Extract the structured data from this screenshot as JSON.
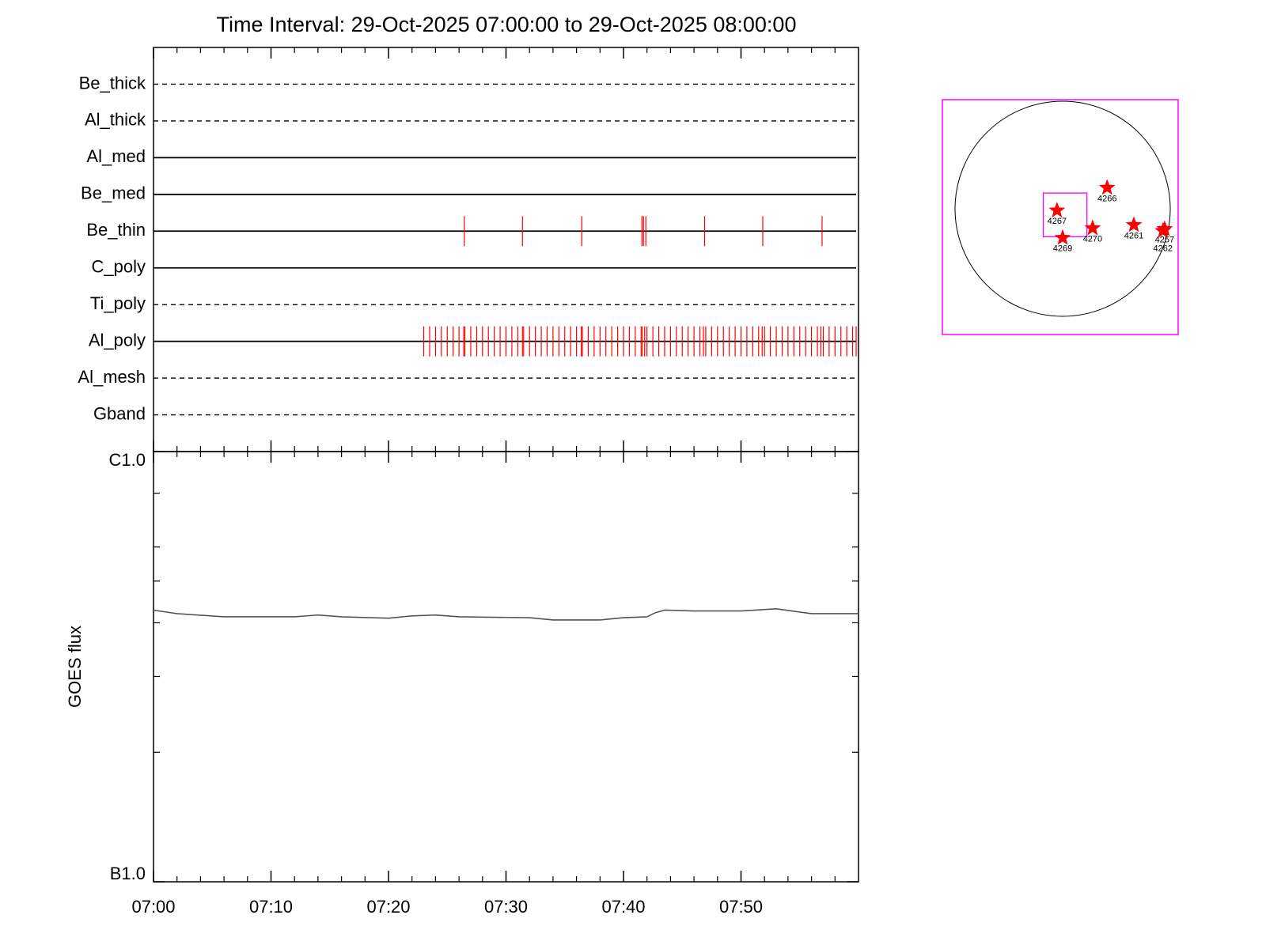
{
  "chart_data": [
    {
      "type": "timeline",
      "title": "Time Interval: 29-Oct-2025 07:00:00 to 29-Oct-2025 08:00:00",
      "xlim": [
        0,
        60
      ],
      "xticks": [
        0,
        10,
        20,
        30,
        40,
        50
      ],
      "xminor": [
        2,
        4,
        6,
        8,
        12,
        14,
        16,
        18,
        22,
        24,
        26,
        28,
        32,
        34,
        36,
        38,
        42,
        44,
        46,
        48,
        52,
        54,
        56,
        58
      ],
      "color": "#ff0000",
      "rows": [
        {
          "name": "Be_thick",
          "style": "dashed",
          "x": []
        },
        {
          "name": "Al_thick",
          "style": "dashed",
          "x": []
        },
        {
          "name": "Al_med",
          "style": "solid",
          "x": []
        },
        {
          "name": "Be_med",
          "style": "solid",
          "x": []
        },
        {
          "name": "Be_thin",
          "style": "solid",
          "x": [
            26.45,
            31.4,
            36.45,
            41.57,
            41.7,
            41.9,
            46.9,
            51.85,
            56.9
          ]
        },
        {
          "name": "C_poly",
          "style": "solid",
          "x": []
        },
        {
          "name": "Ti_poly",
          "style": "dashed",
          "x": []
        },
        {
          "name": "Al_poly",
          "style": "solid",
          "x": [
            23.0,
            23.5,
            24.0,
            24.5,
            25.0,
            25.5,
            26.0,
            26.4,
            26.5,
            27.0,
            27.5,
            28.0,
            28.5,
            29.0,
            29.5,
            30.0,
            30.5,
            31.0,
            31.4,
            31.5,
            32.0,
            32.5,
            33.0,
            33.5,
            34.0,
            34.5,
            35.0,
            35.5,
            36.0,
            36.4,
            36.5,
            37.0,
            37.5,
            38.0,
            38.5,
            39.0,
            39.5,
            40.0,
            40.5,
            41.0,
            41.5,
            41.6,
            41.8,
            42.0,
            42.5,
            43.0,
            43.5,
            44.0,
            44.5,
            45.0,
            45.5,
            46.0,
            46.5,
            46.8,
            47.0,
            47.5,
            48.0,
            48.5,
            49.0,
            49.5,
            50.0,
            50.5,
            51.0,
            51.5,
            51.8,
            52.0,
            52.5,
            53.0,
            53.5,
            54.0,
            54.5,
            55.0,
            55.5,
            56.0,
            56.5,
            56.8,
            57.0,
            57.5,
            58.0,
            58.5,
            59.0,
            59.5,
            59.8
          ]
        },
        {
          "name": "Al_mesh",
          "style": "dashed",
          "x": []
        },
        {
          "name": "Gband",
          "style": "dashed",
          "x": []
        }
      ]
    },
    {
      "type": "line",
      "ylabel": "GOES flux",
      "ylog": true,
      "color": "#555555",
      "xlim": [
        0,
        60
      ],
      "xticks": [
        {
          "value": 0,
          "label": "07:00"
        },
        {
          "value": 10,
          "label": "07:10"
        },
        {
          "value": 20,
          "label": "07:20"
        },
        {
          "value": 30,
          "label": "07:30"
        },
        {
          "value": 40,
          "label": "07:40"
        },
        {
          "value": 50,
          "label": "07:50"
        }
      ],
      "xminor": [
        2,
        4,
        6,
        8,
        12,
        14,
        16,
        18,
        22,
        24,
        26,
        28,
        32,
        34,
        36,
        38,
        42,
        44,
        46,
        48,
        52,
        54,
        56,
        58
      ],
      "ylim": [
        1e-07,
        1e-06
      ],
      "yticks": [
        {
          "value": 1e-06,
          "label": "C1.0"
        },
        {
          "value": 1e-07,
          "label": "B1.0"
        }
      ],
      "yminor": [
        2e-07,
        3e-07,
        4e-07,
        5e-07,
        6e-07,
        8e-07
      ],
      "x": [
        0,
        2,
        6,
        12,
        14,
        16,
        20,
        22,
        24,
        26,
        32,
        34,
        38,
        40,
        42,
        42.7,
        43.5,
        46,
        50,
        53,
        56,
        60
      ],
      "values": [
        4.28e-07,
        4.2e-07,
        4.13e-07,
        4.13e-07,
        4.17e-07,
        4.13e-07,
        4.1e-07,
        4.15e-07,
        4.17e-07,
        4.13e-07,
        4.11e-07,
        4.06e-07,
        4.06e-07,
        4.11e-07,
        4.13e-07,
        4.22e-07,
        4.28e-07,
        4.26e-07,
        4.26e-07,
        4.31e-07,
        4.2e-07,
        4.2e-07
      ]
    },
    {
      "type": "disk",
      "radius": 970,
      "color": "#ff0000",
      "fov_color": "#ff00ff",
      "fov": {
        "x": 22,
        "y": -55,
        "width": 394
      },
      "regions": [
        {
          "label": "4266",
          "x": 401,
          "y": 190
        },
        {
          "label": "4267",
          "x": -51,
          "y": -15
        },
        {
          "label": "4270",
          "x": 270,
          "y": -175
        },
        {
          "label": "4261",
          "x": 642,
          "y": -146
        },
        {
          "label": "4257",
          "x": 919,
          "y": -182
        },
        {
          "label": "4262",
          "x": 904,
          "y": -200
        },
        {
          "label": "4269",
          "x": 0,
          "y": -262
        }
      ]
    }
  ]
}
